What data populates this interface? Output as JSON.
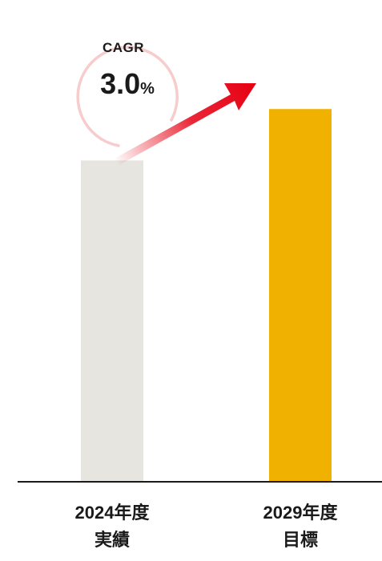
{
  "chart_data": {
    "type": "bar",
    "categories": [
      "2024年度\n実績",
      "2029年度\n目標"
    ],
    "values": [
      100,
      116
    ],
    "ylim": [
      0,
      130
    ],
    "grid": false,
    "bar_colors": [
      "#e6e5e0",
      "#f0b100"
    ],
    "annotation": {
      "title": "CAGR",
      "value": "3.0",
      "unit": "%",
      "arrow_color": "#e60012",
      "circle_color": "#f6cccc"
    }
  }
}
